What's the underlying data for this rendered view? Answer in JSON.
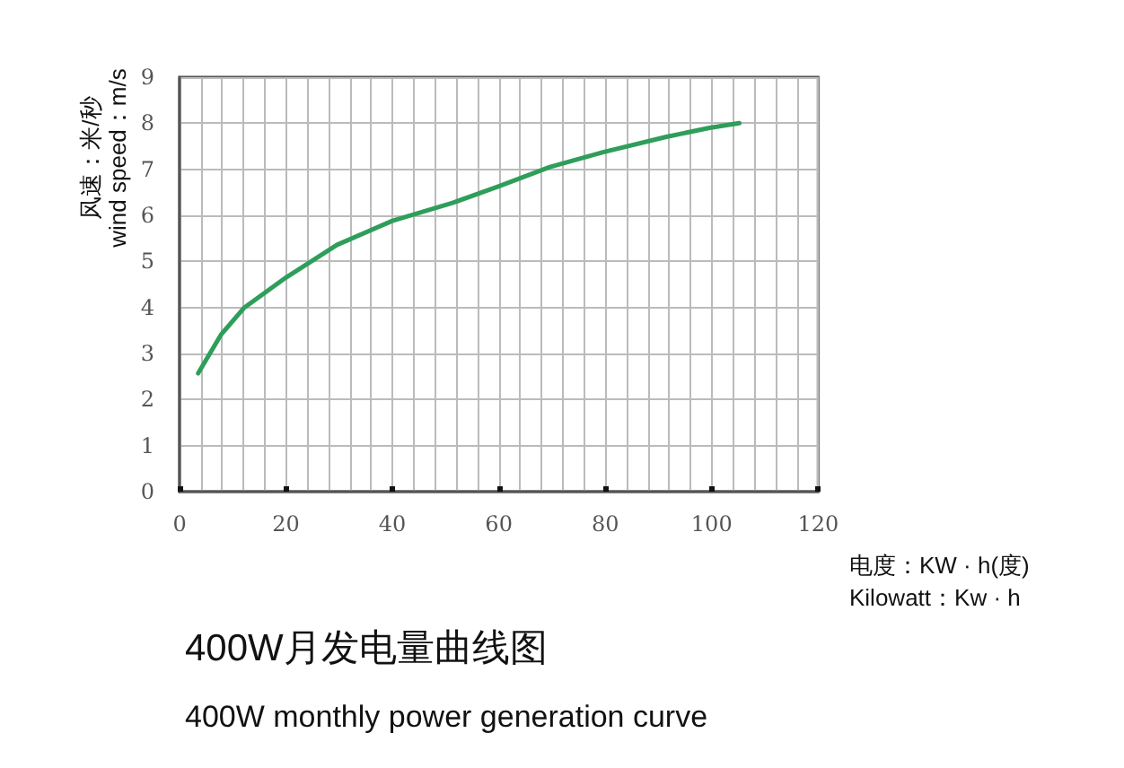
{
  "chart_data": {
    "type": "line",
    "title": "400W月发电量曲线图",
    "subtitle": "400W monthly power generation curve",
    "xlabel": "电度：KW · h(度)\nKilowatt：Kw · h",
    "ylabel": "风速：米/秒\nwind speed：m/s",
    "series": [
      {
        "color": "#2e9e5a",
        "x": [
          3.5,
          7.8,
          12.2,
          20,
          29.6,
          40,
          51.3,
          60,
          69.6,
          79.6,
          91.3,
          99.6,
          105.2
        ],
        "values": [
          2.57,
          3.41,
          4.0,
          4.65,
          5.36,
          5.88,
          6.27,
          6.63,
          7.05,
          7.37,
          7.7,
          7.9,
          8.0
        ]
      }
    ],
    "xlim": [
      0,
      120
    ],
    "xticks": [
      0,
      20,
      40,
      60,
      80,
      100,
      120
    ],
    "ylim": [
      0,
      9
    ],
    "yticks": [
      0,
      1,
      2,
      3,
      4,
      5,
      6,
      7,
      8,
      9
    ],
    "grid": true,
    "marker": "none",
    "line_style": "solid"
  }
}
